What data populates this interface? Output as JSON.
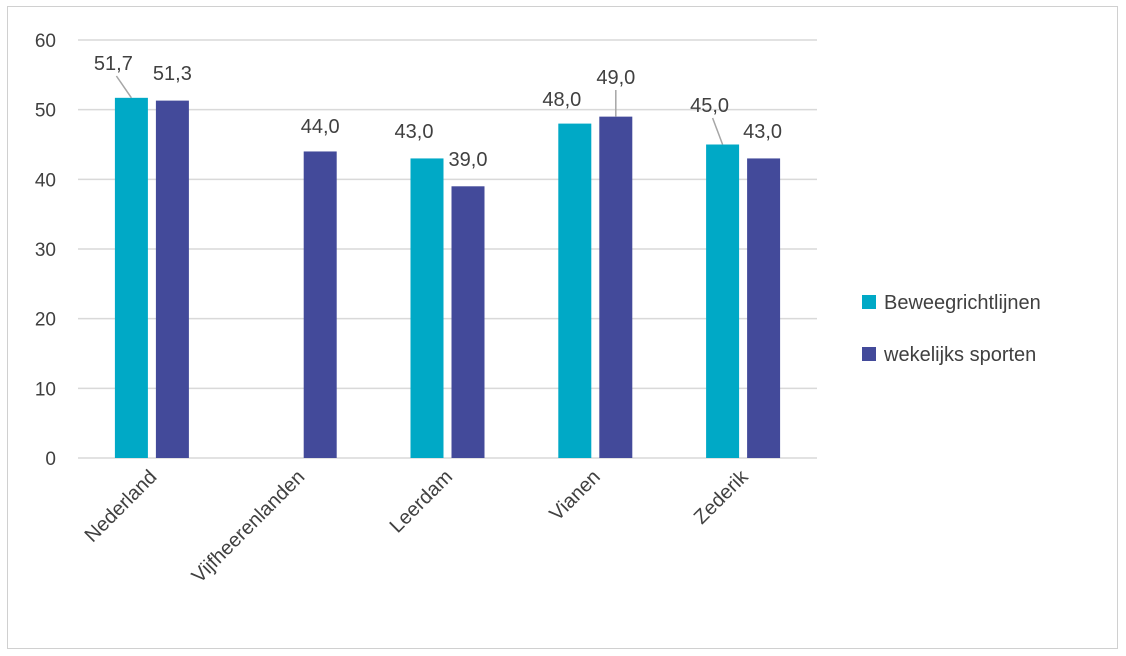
{
  "chart_data": {
    "type": "bar",
    "categories": [
      "Nederland",
      "Vijfheerenlanden",
      "Leerdam",
      "Vianen",
      "Zederik"
    ],
    "series": [
      {
        "name": "Beweegrichtlijnen",
        "color": "#00A9C6",
        "values": [
          51.7,
          null,
          43.0,
          48.0,
          45.0
        ],
        "labels": [
          "51,7",
          "",
          "43,0",
          "48,0",
          "45,0"
        ]
      },
      {
        "name": "wekelijks sporten",
        "color": "#434A9A",
        "values": [
          51.3,
          44.0,
          39.0,
          49.0,
          43.0
        ],
        "labels": [
          "51,3",
          "44,0",
          "39,0",
          "49,0",
          "43,0"
        ]
      }
    ],
    "ylim": [
      0,
      60
    ],
    "yticks": [
      "0",
      "10",
      "20",
      "30",
      "40",
      "50",
      "60"
    ],
    "grid": true,
    "legend": "right",
    "title": "",
    "xlabel": "",
    "ylabel": ""
  }
}
